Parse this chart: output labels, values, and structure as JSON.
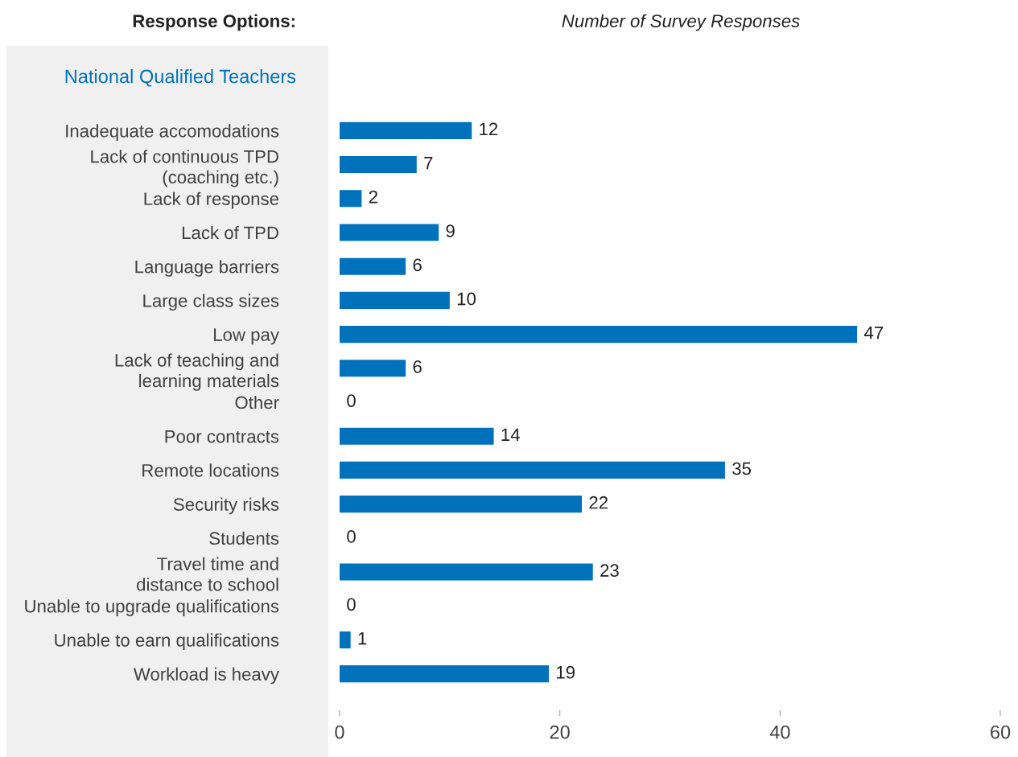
{
  "chart_data": {
    "type": "bar",
    "orientation": "horizontal",
    "ylabel": "Response Options:",
    "xlabel": "Number of Survey Responses",
    "subtitle": "National Qualified Teachers",
    "categories": [
      "Inadequate accomodations",
      "Lack of continuous TPD\n(coaching etc.)",
      "Lack of response",
      "Lack of TPD",
      "Language barriers",
      "Large class sizes",
      "Low pay",
      "Lack of teaching and\nlearning materials",
      "Other",
      "Poor contracts",
      "Remote locations",
      "Security risks",
      "Students",
      "Travel time and\ndistance to school",
      "Unable to upgrade qualifications",
      "Unable to earn qualifications",
      "Workload is heavy"
    ],
    "values": [
      12,
      7,
      2,
      9,
      6,
      10,
      47,
      6,
      0,
      14,
      35,
      22,
      0,
      23,
      0,
      1,
      19
    ],
    "color": "#0072bc",
    "data_labels": true,
    "xlim": [
      0,
      60
    ],
    "xticks": [
      0,
      20,
      40,
      60
    ],
    "grid": false,
    "legend": false
  }
}
